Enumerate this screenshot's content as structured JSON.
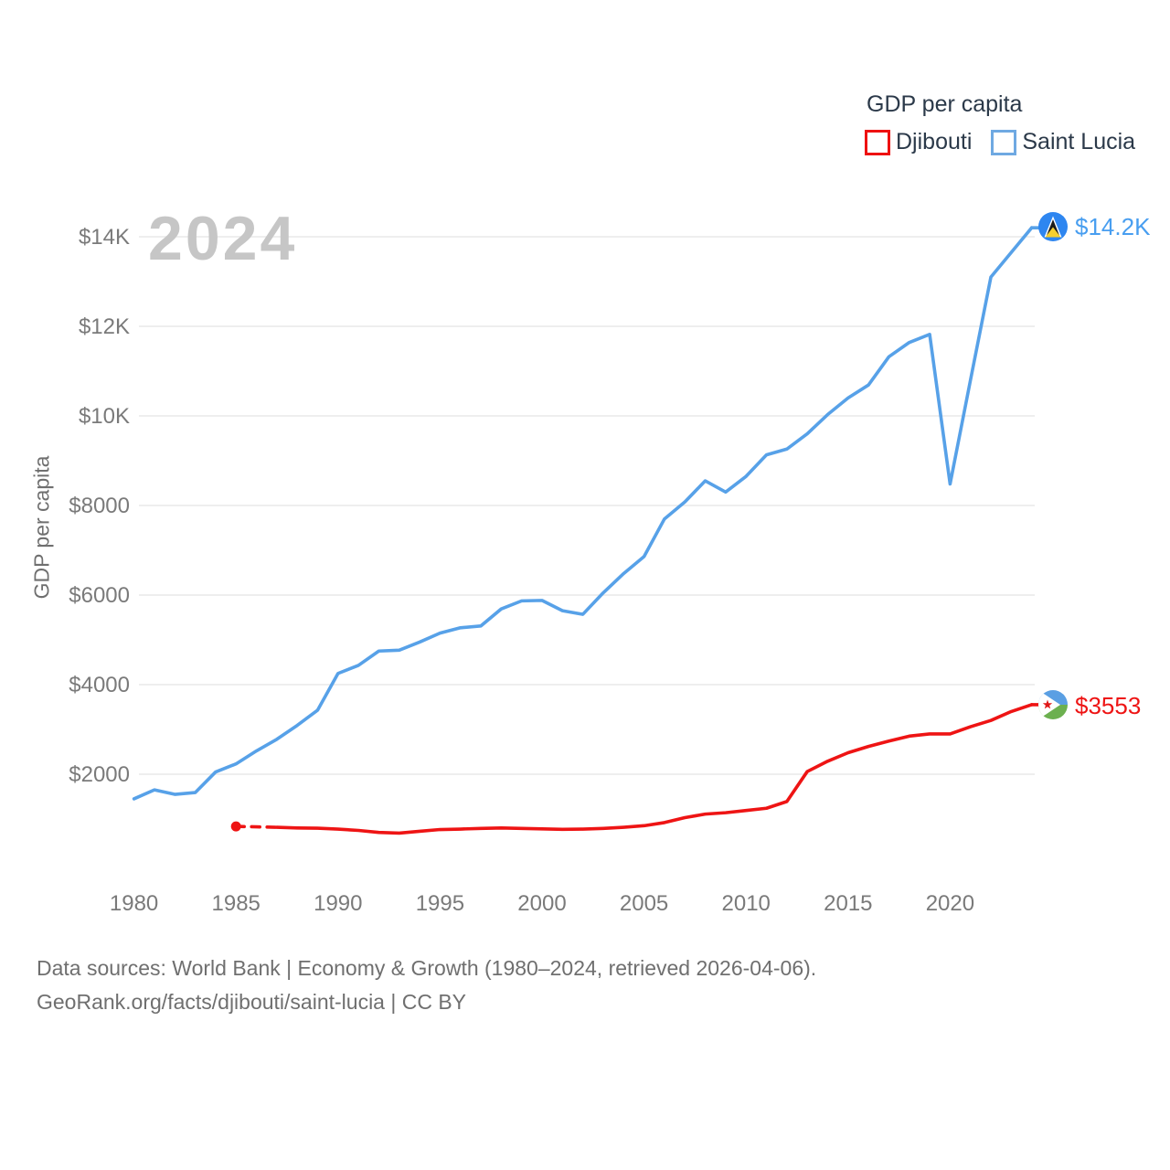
{
  "legend": {
    "title": "GDP per capita",
    "items": [
      {
        "label": "Djibouti",
        "color": "#ee1111"
      },
      {
        "label": "Saint Lucia",
        "color": "#6fa9e2"
      }
    ]
  },
  "watermark": "2024",
  "end_labels": {
    "saint_lucia": "$14.2K",
    "djibouti": "$3553"
  },
  "footer": {
    "line1": "Data sources: World Bank | Economy & Growth (1980–2024, retrieved 2026-04-06).",
    "line2": "GeoRank.org/facts/djibouti/saint-lucia | CC BY"
  },
  "chart_data": {
    "type": "line",
    "title": "GDP per capita",
    "xlabel": "",
    "ylabel": "GDP per capita",
    "grid": "horizontal",
    "legend_position": "top-right",
    "x_range": [
      1980,
      2024
    ],
    "ylim": [
      0,
      14700
    ],
    "x_ticks": [
      1980,
      1985,
      1990,
      1995,
      2000,
      2005,
      2010,
      2015,
      2020
    ],
    "y_ticks": [
      {
        "value": 2000,
        "label": "$2000"
      },
      {
        "value": 4000,
        "label": "$4000"
      },
      {
        "value": 6000,
        "label": "$6000"
      },
      {
        "value": 8000,
        "label": "$8000"
      },
      {
        "value": 10000,
        "label": "$10K"
      },
      {
        "value": 12000,
        "label": "$12K"
      },
      {
        "value": 14000,
        "label": "$14K"
      }
    ],
    "x": [
      1980,
      1981,
      1982,
      1983,
      1984,
      1985,
      1986,
      1987,
      1988,
      1989,
      1990,
      1991,
      1992,
      1993,
      1994,
      1995,
      1996,
      1997,
      1998,
      1999,
      2000,
      2001,
      2002,
      2003,
      2004,
      2005,
      2006,
      2007,
      2008,
      2009,
      2010,
      2011,
      2012,
      2013,
      2014,
      2015,
      2016,
      2017,
      2018,
      2019,
      2020,
      2021,
      2022,
      2023,
      2024
    ],
    "series": [
      {
        "name": "Saint Lucia",
        "color": "#57a1e8",
        "end_label": "$14.2K",
        "values": [
          1450,
          1650,
          1550,
          1590,
          2050,
          2230,
          2520,
          2780,
          3090,
          3430,
          4250,
          4430,
          4750,
          4770,
          4950,
          5150,
          5270,
          5310,
          5690,
          5870,
          5880,
          5650,
          5570,
          6050,
          6480,
          6860,
          7700,
          8080,
          8550,
          8300,
          8650,
          9130,
          9260,
          9600,
          10030,
          10400,
          10690,
          11320,
          11640,
          11820,
          8480,
          10800,
          13100,
          13650,
          14200
        ]
      },
      {
        "name": "Djibouti",
        "color": "#ee1414",
        "end_label": "$3553",
        "dash_end_year": 1987,
        "start_dot_year": 1985,
        "values": [
          null,
          null,
          null,
          null,
          null,
          835,
          825,
          815,
          800,
          795,
          775,
          745,
          700,
          685,
          725,
          765,
          775,
          790,
          800,
          790,
          780,
          770,
          775,
          790,
          815,
          850,
          920,
          1030,
          1110,
          1140,
          1190,
          1240,
          1390,
          2060,
          2290,
          2480,
          2620,
          2740,
          2850,
          2900,
          2900,
          3060,
          3200,
          3400,
          3553
        ]
      }
    ]
  }
}
